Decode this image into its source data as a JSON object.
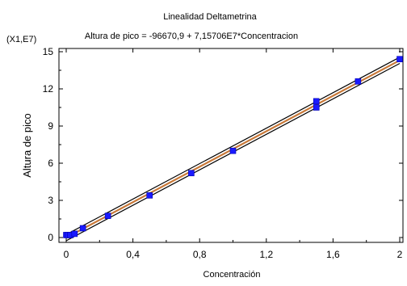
{
  "chart_data": {
    "type": "scatter",
    "title": "Linealidad Deltametrina",
    "subtitle": "Altura de pico = -96670,9 + 7,15706E7*Concentracion",
    "xlabel": "Concentración",
    "ylabel": "Altura de pico",
    "y_multiplier_label": "(X1,E7)",
    "xlim": [
      0,
      2
    ],
    "ylim": [
      0,
      15
    ],
    "x_ticks": [
      0,
      0.4,
      0.8,
      1.2,
      1.6,
      2
    ],
    "x_tick_labels": [
      "0",
      "0,4",
      "0,8",
      "1,2",
      "1,6",
      "2"
    ],
    "y_ticks": [
      0,
      3,
      6,
      9,
      12,
      15
    ],
    "y_tick_labels": [
      "0",
      "3",
      "6",
      "9",
      "12",
      "15"
    ],
    "y_unit_scale": 10000000,
    "grid": false,
    "regression": {
      "intercept": -96670.9,
      "slope": 71570600
    },
    "series": [
      {
        "x": [
          0,
          0.01,
          0.025,
          0.05,
          0.1,
          0.25,
          0.5,
          0.75,
          1.0,
          1.5,
          1.5,
          1.75,
          2.0
        ],
        "y": [
          0.2,
          0.2,
          0.2,
          0.3,
          0.75,
          1.75,
          3.4,
          5.2,
          7.0,
          10.5,
          11.0,
          12.6,
          14.4
        ]
      }
    ],
    "colors": {
      "points": "#1a1aff",
      "fit_line": "#c87838",
      "confidence_band": "#000000"
    }
  }
}
